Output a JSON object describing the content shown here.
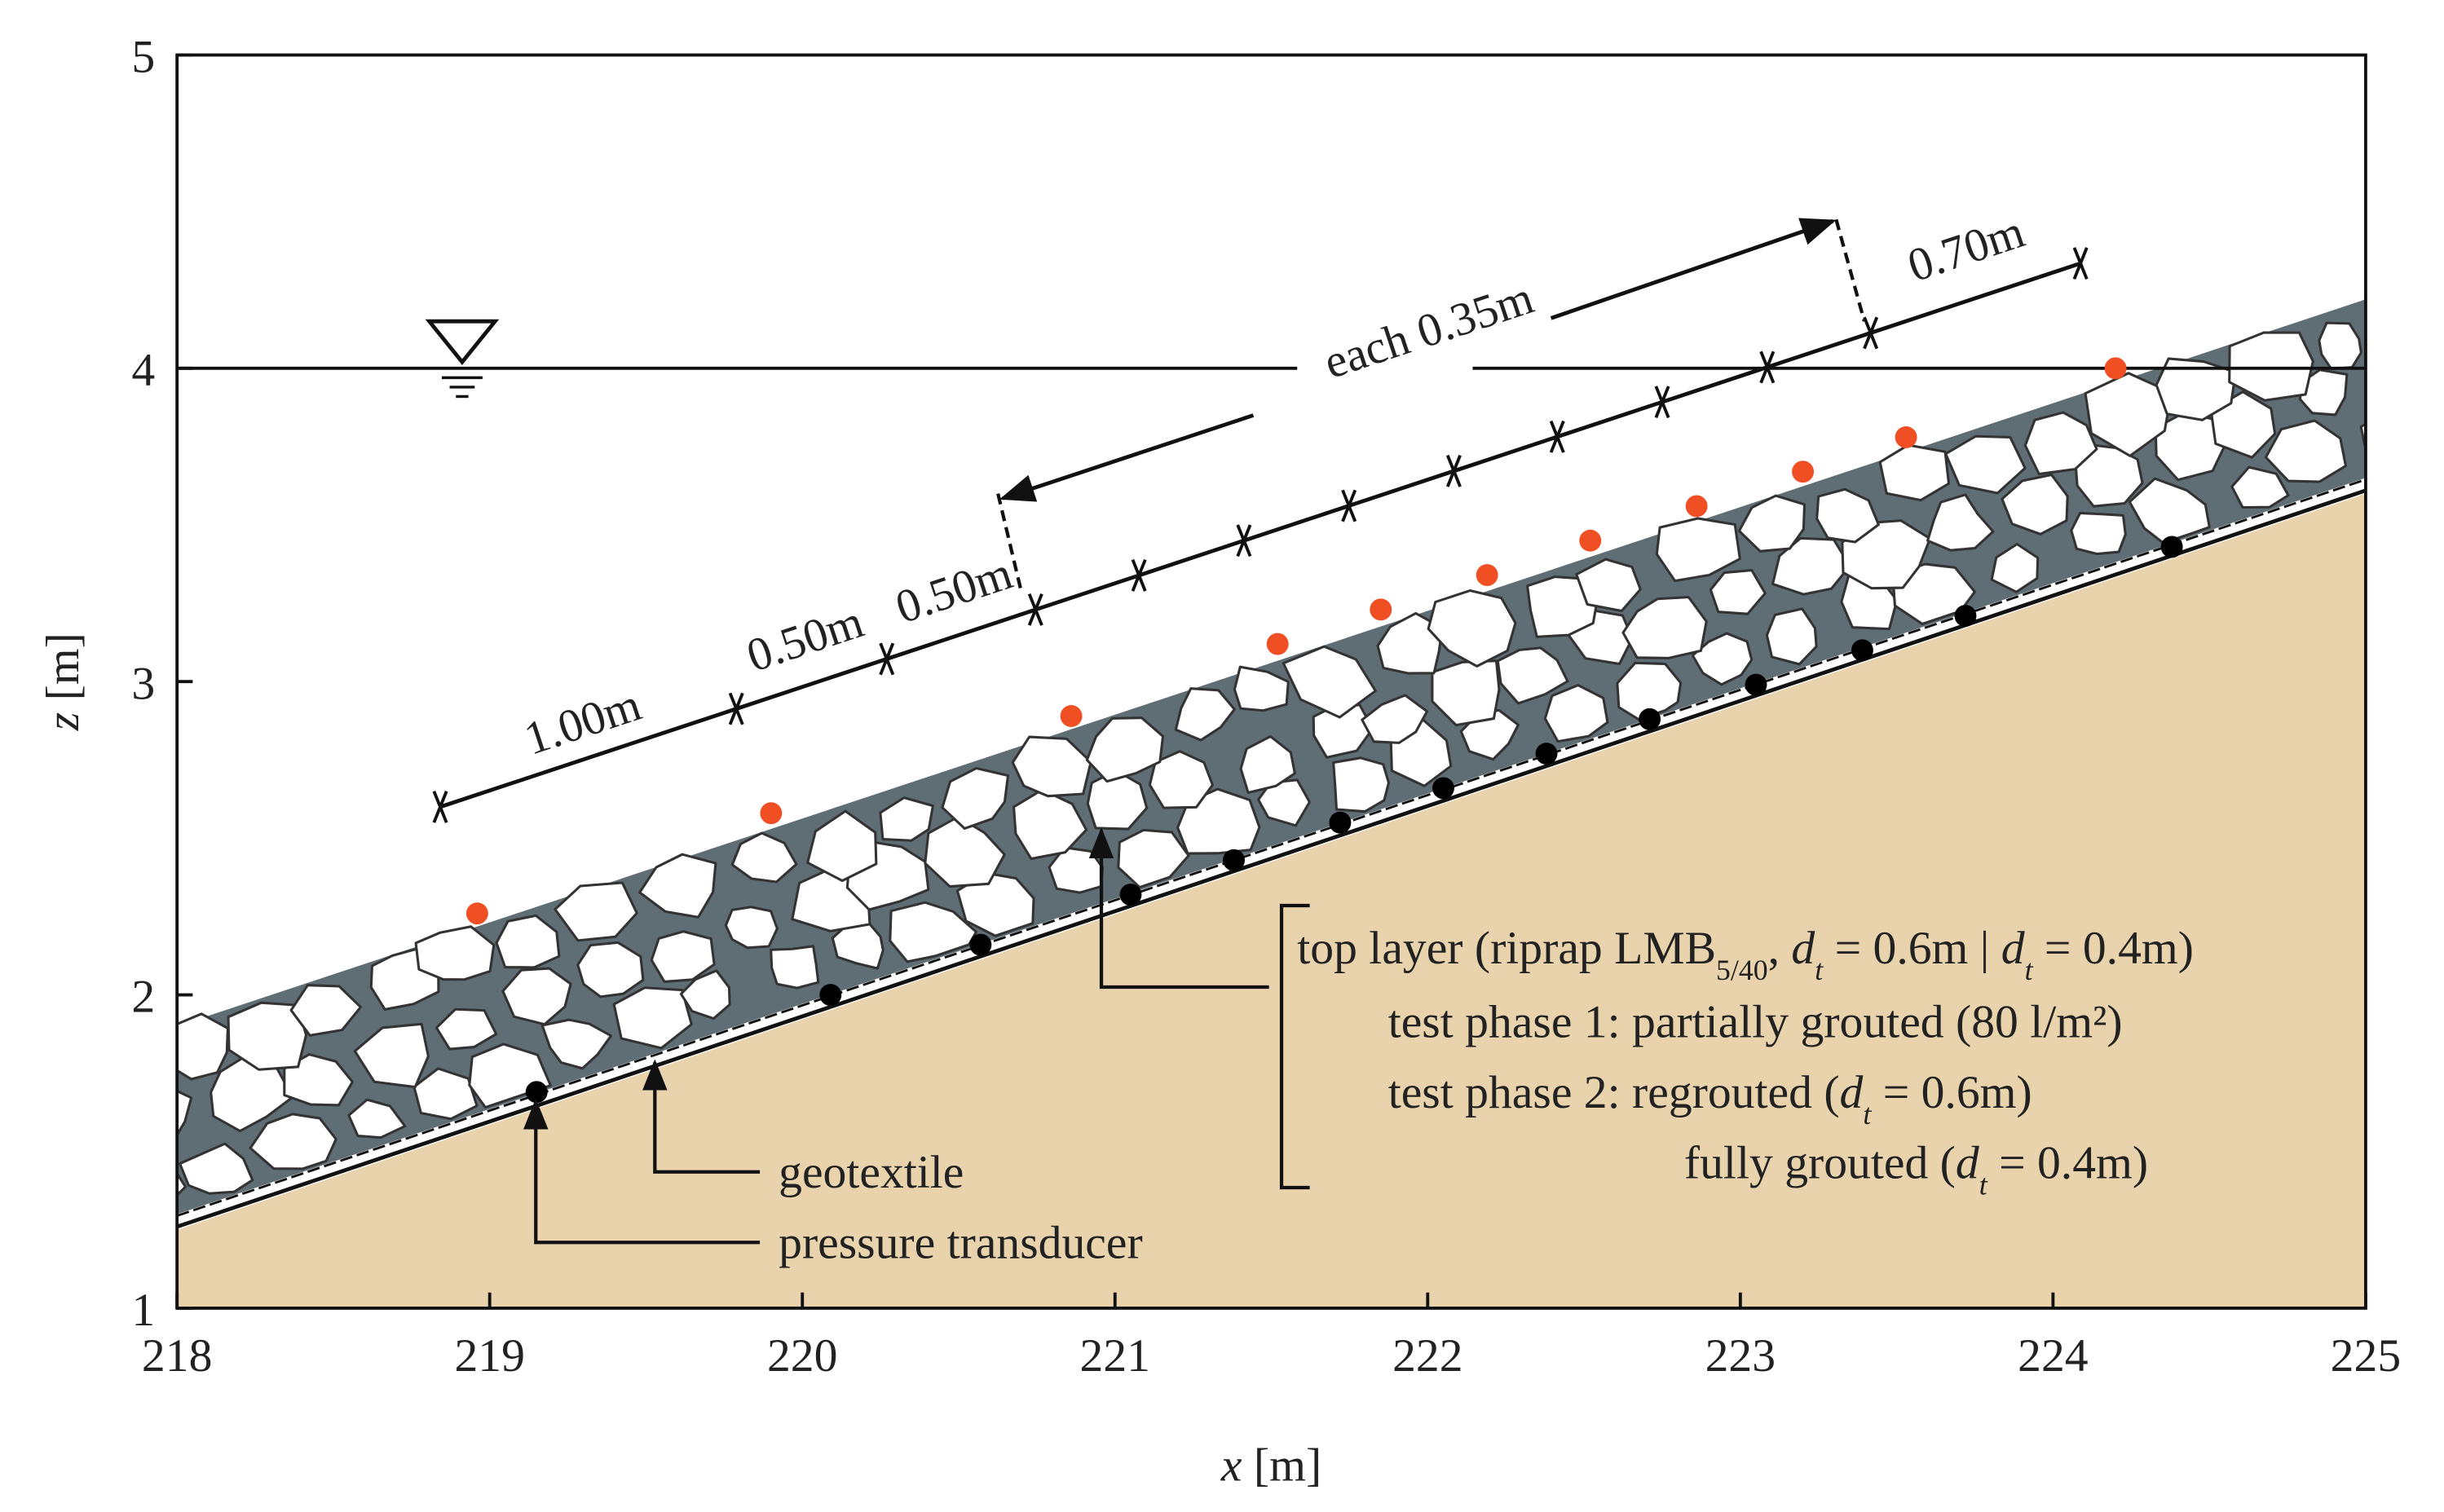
{
  "axes": {
    "xlabel": [
      {
        "text": "x",
        "italic": true
      },
      {
        "text": " [m]"
      }
    ],
    "ylabel": [
      {
        "text": "z",
        "italic": true
      },
      {
        "text": " [m]"
      }
    ],
    "xlim": [
      218,
      225
    ],
    "ylim": [
      1,
      5
    ],
    "xticks": [
      218,
      219,
      220,
      221,
      222,
      223,
      224,
      225
    ],
    "yticks": [
      1,
      2,
      3,
      4,
      5
    ]
  },
  "water_level": 4,
  "ground": {
    "x": [
      218,
      225
    ],
    "z": [
      1.25,
      3.6
    ],
    "color": "#e8d3ac"
  },
  "riprap_top": {
    "x": [
      218,
      225
    ],
    "z": [
      1.9,
      4.22
    ],
    "color": "#5f6e75"
  },
  "transducers": {
    "color": "#000000",
    "x": [
      219.15,
      220.09,
      220.57,
      221.05,
      221.38,
      221.72,
      222.05,
      222.38,
      222.71,
      223.05,
      223.39,
      223.72,
      224.38
    ],
    "z": [
      1.69,
      2.0,
      2.16,
      2.32,
      2.43,
      2.55,
      2.66,
      2.77,
      2.88,
      2.99,
      3.1,
      3.21,
      3.43
    ]
  },
  "surface_points": {
    "color": "#f04e23",
    "x": [
      218.96,
      219.9,
      220.86,
      221.52,
      221.85,
      222.19,
      222.52,
      222.86,
      223.2,
      223.53,
      224.2
    ],
    "z": [
      2.26,
      2.58,
      2.89,
      3.12,
      3.23,
      3.34,
      3.45,
      3.56,
      3.67,
      3.78,
      4.0
    ]
  },
  "dimension_labels": [
    "1.00m",
    "0.50m",
    "0.50m",
    "each 0.35m",
    "0.70m"
  ],
  "labels": {
    "geotextile": "geotextile",
    "pressure_transducer": "pressure transducer"
  },
  "description": [
    [
      {
        "text": "top layer (riprap LMB"
      },
      {
        "text": "5/40",
        "sub": true
      },
      {
        "text": ", "
      },
      {
        "text": "d",
        "italic": true
      },
      {
        "text": "t",
        "italic": true,
        "sub": true
      },
      {
        "text": " = 0.6m | "
      },
      {
        "text": "d",
        "italic": true
      },
      {
        "text": "t",
        "italic": true,
        "sub": true
      },
      {
        "text": " = 0.4m)"
      }
    ],
    [
      {
        "text": "test phase 1: partially grouted (80 l/m²)"
      }
    ],
    [
      {
        "text": "test phase 2: regrouted ("
      },
      {
        "text": "d",
        "italic": true
      },
      {
        "text": "t",
        "italic": true,
        "sub": true
      },
      {
        "text": " = 0.6m)"
      }
    ],
    [
      {
        "text": "fully grouted ("
      },
      {
        "text": "d",
        "italic": true
      },
      {
        "text": "t",
        "italic": true,
        "sub": true
      },
      {
        "text": " = 0.4m)"
      }
    ]
  ]
}
